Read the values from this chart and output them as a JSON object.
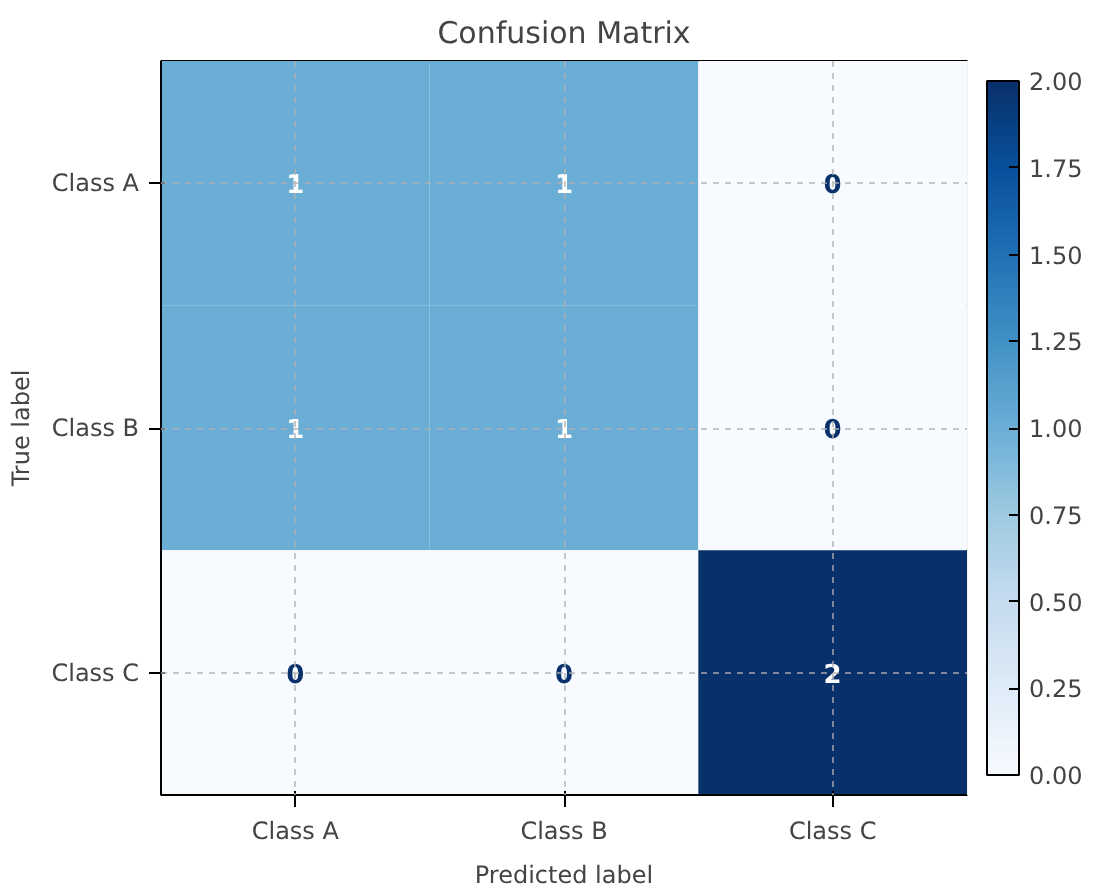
{
  "chart_data": {
    "type": "heatmap",
    "title": "Confusion Matrix",
    "xlabel": "Predicted label",
    "ylabel": "True label",
    "categories": [
      "Class A",
      "Class B",
      "Class C"
    ],
    "y_categories": [
      "Class A",
      "Class B",
      "Class C"
    ],
    "cells": [
      [
        1,
        1,
        0
      ],
      [
        1,
        1,
        0
      ],
      [
        0,
        0,
        2
      ]
    ],
    "clim": [
      0,
      2
    ],
    "cticks": [
      {
        "value": 0,
        "label": "0.00"
      },
      {
        "value": 0.25,
        "label": "0.25"
      },
      {
        "value": 0.5,
        "label": "0.50"
      },
      {
        "value": 0.75,
        "label": "0.75"
      },
      {
        "value": 1,
        "label": "1.00"
      },
      {
        "value": 1.25,
        "label": "1.25"
      },
      {
        "value": 1.5,
        "label": "1.50"
      },
      {
        "value": 1.75,
        "label": "1.75"
      },
      {
        "value": 2,
        "label": "2.00"
      }
    ],
    "grid": true,
    "data_labels": true
  }
}
